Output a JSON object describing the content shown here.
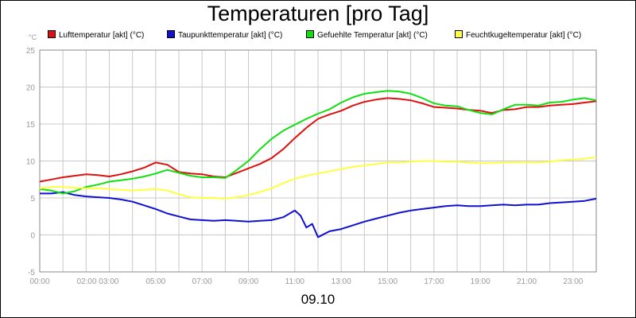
{
  "chart_data": {
    "type": "line",
    "title": "Temperaturen [pro Tag]",
    "xlabel": "09.10",
    "ylabel": "°C",
    "ylim": [
      -5,
      25
    ],
    "yticks": [
      -5,
      0,
      5,
      10,
      15,
      20,
      25
    ],
    "xlim": [
      0,
      24
    ],
    "xtick_labels": [
      "00:00",
      "02:00 03:00",
      "05:00",
      "07:00",
      "09:00",
      "11:00",
      "13:00",
      "15:00",
      "17:00",
      "19:00",
      "21:00",
      "23:00"
    ],
    "xtick_positions": [
      0,
      2.5,
      5,
      7,
      9,
      11,
      13,
      15,
      17,
      19,
      21,
      23
    ],
    "grid": true,
    "legend_position": "top",
    "series": [
      {
        "name": "Lufttemperatur [akt] (°C)",
        "color": "#e01010",
        "x": [
          0,
          0.5,
          1,
          1.5,
          2,
          2.5,
          3,
          3.5,
          4,
          4.5,
          5,
          5.5,
          6,
          6.5,
          7,
          7.5,
          8,
          8.5,
          9,
          9.5,
          10,
          10.5,
          11,
          11.5,
          12,
          12.5,
          13,
          13.5,
          14,
          14.5,
          15,
          15.5,
          16,
          16.5,
          17,
          17.5,
          18,
          18.5,
          19,
          19.5,
          20,
          20.5,
          21,
          21.5,
          22,
          22.5,
          23,
          23.5,
          24
        ],
        "values": [
          7.2,
          7.5,
          7.8,
          8.0,
          8.2,
          8.1,
          7.9,
          8.2,
          8.6,
          9.1,
          9.8,
          9.5,
          8.5,
          8.3,
          8.2,
          7.9,
          7.8,
          8.4,
          9.0,
          9.6,
          10.4,
          11.6,
          13.1,
          14.5,
          15.7,
          16.3,
          16.8,
          17.5,
          18.0,
          18.3,
          18.5,
          18.4,
          18.2,
          17.8,
          17.3,
          17.2,
          17.1,
          16.9,
          16.8,
          16.5,
          16.9,
          17.0,
          17.3,
          17.3,
          17.5,
          17.6,
          17.7,
          17.9,
          18.1
        ]
      },
      {
        "name": "Taupunkttemperatur [akt] (°C)",
        "color": "#1010d0",
        "x": [
          0,
          0.5,
          1,
          1.5,
          2,
          2.5,
          3,
          3.5,
          4,
          4.5,
          5,
          5.5,
          6,
          6.5,
          7,
          7.5,
          8,
          8.5,
          9,
          9.5,
          10,
          10.5,
          11,
          11.25,
          11.5,
          11.75,
          12,
          12.5,
          13,
          13.5,
          14,
          14.5,
          15,
          15.5,
          16,
          16.5,
          17,
          17.5,
          18,
          18.5,
          19,
          19.5,
          20,
          20.5,
          21,
          21.5,
          22,
          22.5,
          23,
          23.5,
          24
        ],
        "values": [
          5.6,
          5.6,
          5.8,
          5.4,
          5.2,
          5.1,
          5.0,
          4.8,
          4.5,
          4.0,
          3.5,
          2.9,
          2.5,
          2.1,
          2.0,
          1.9,
          2.0,
          1.9,
          1.8,
          1.9,
          2.0,
          2.4,
          3.3,
          2.6,
          1.0,
          1.5,
          -0.3,
          0.5,
          0.8,
          1.3,
          1.8,
          2.2,
          2.6,
          3.0,
          3.3,
          3.5,
          3.7,
          3.9,
          4.0,
          3.9,
          3.9,
          4.0,
          4.1,
          4.0,
          4.1,
          4.1,
          4.3,
          4.4,
          4.5,
          4.6,
          4.9
        ]
      },
      {
        "name": "Gefuehlte Temperatur [akt] (°C)",
        "color": "#10e010",
        "x": [
          0,
          0.5,
          1,
          1.5,
          2,
          2.5,
          3,
          3.5,
          4,
          4.5,
          5,
          5.5,
          6,
          6.5,
          7,
          7.5,
          8,
          8.5,
          9,
          9.5,
          10,
          10.5,
          11,
          11.5,
          12,
          12.5,
          13,
          13.5,
          14,
          14.5,
          15,
          15.5,
          16,
          16.5,
          17,
          17.5,
          18,
          18.5,
          19,
          19.5,
          20,
          20.5,
          21,
          21.5,
          22,
          22.5,
          23,
          23.5,
          24
        ],
        "values": [
          6.2,
          6.0,
          5.6,
          5.9,
          6.5,
          6.8,
          7.2,
          7.4,
          7.6,
          7.9,
          8.3,
          8.8,
          8.4,
          8.0,
          7.8,
          7.8,
          7.7,
          8.8,
          10.0,
          11.6,
          13.0,
          14.1,
          14.9,
          15.7,
          16.4,
          17.0,
          17.9,
          18.6,
          19.1,
          19.3,
          19.5,
          19.4,
          19.1,
          18.5,
          17.8,
          17.5,
          17.4,
          16.9,
          16.5,
          16.3,
          17.0,
          17.6,
          17.6,
          17.5,
          17.9,
          18.0,
          18.3,
          18.5,
          18.2
        ]
      },
      {
        "name": "Feuchtkugeltemperatur [akt] (°C)",
        "color": "#ffff40",
        "x": [
          0,
          0.5,
          1,
          1.5,
          2,
          2.5,
          3,
          3.5,
          4,
          4.5,
          5,
          5.5,
          6,
          6.5,
          7,
          7.5,
          8,
          8.5,
          9,
          9.5,
          10,
          10.5,
          11,
          11.5,
          12,
          12.5,
          13,
          13.5,
          14,
          14.5,
          15,
          15.5,
          16,
          16.5,
          17,
          17.5,
          18,
          18.5,
          19,
          19.5,
          20,
          20.5,
          21,
          21.5,
          22,
          22.5,
          23,
          23.5,
          24
        ],
        "values": [
          6.3,
          6.5,
          6.5,
          6.4,
          6.3,
          6.3,
          6.2,
          6.1,
          6.0,
          6.1,
          6.2,
          6.0,
          5.5,
          5.1,
          5.0,
          5.0,
          4.9,
          5.1,
          5.4,
          5.8,
          6.3,
          7.0,
          7.6,
          8.0,
          8.3,
          8.6,
          8.9,
          9.2,
          9.4,
          9.6,
          9.8,
          9.8,
          9.9,
          10.0,
          10.0,
          9.9,
          9.9,
          9.8,
          9.7,
          9.7,
          9.8,
          9.8,
          9.8,
          9.8,
          9.9,
          10.1,
          10.2,
          10.3,
          10.5
        ]
      }
    ]
  }
}
